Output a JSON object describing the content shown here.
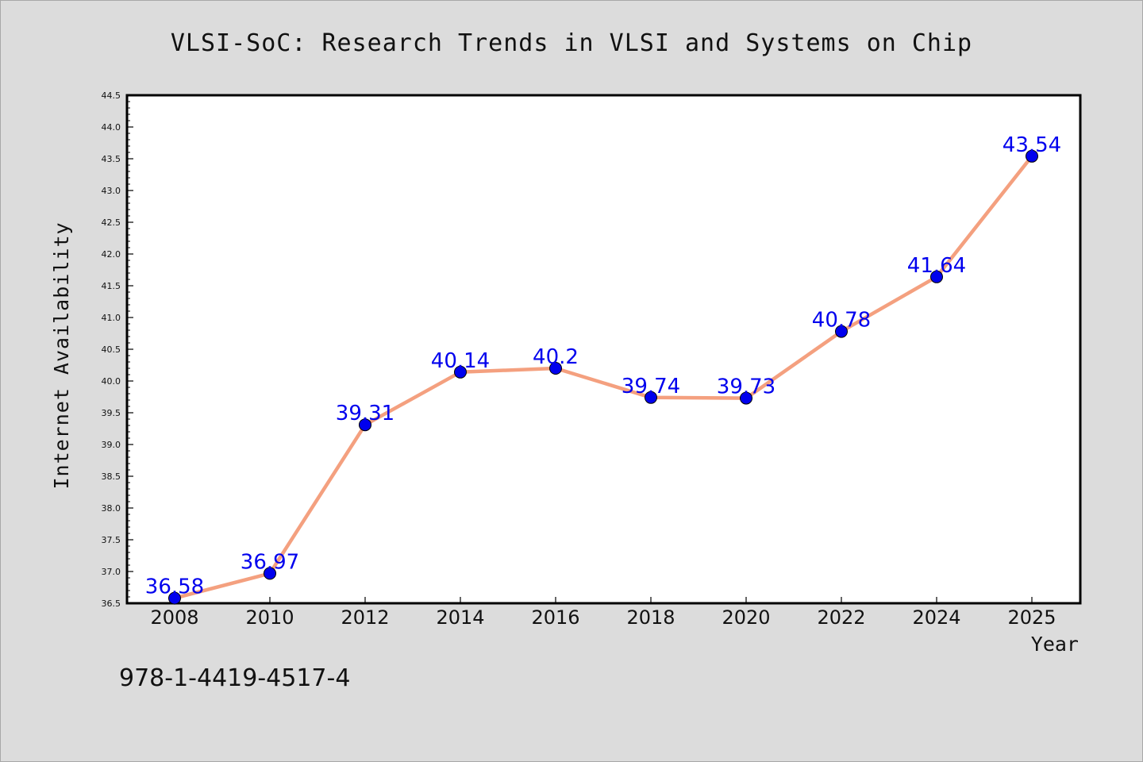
{
  "chart_data": {
    "type": "line",
    "title": "VLSI-SoC: Research Trends in VLSI and Systems on Chip",
    "xlabel": "Year",
    "ylabel": "Internet Availability",
    "categories": [
      "2008",
      "2010",
      "2012",
      "2014",
      "2016",
      "2018",
      "2020",
      "2022",
      "2024",
      "2025"
    ],
    "values": [
      36.58,
      36.97,
      39.31,
      40.14,
      40.2,
      39.74,
      39.73,
      40.78,
      41.64,
      43.54
    ],
    "data_labels": [
      "36.58",
      "36.97",
      "39.31",
      "40.14",
      "40.2",
      "39.74",
      "39.73",
      "40.78",
      "41.64",
      "43.54"
    ],
    "ylim": [
      36.5,
      44.5
    ],
    "yticks": [
      "36.5",
      "37.0",
      "37.5",
      "38.0",
      "38.5",
      "39.0",
      "39.5",
      "40.0",
      "40.5",
      "41.0",
      "41.5",
      "42.0",
      "42.5",
      "43.0",
      "43.5",
      "44.0",
      "44.5"
    ],
    "grid": false,
    "legend": "none",
    "line_color": "#f4a07f",
    "marker_color": "#0000ee",
    "label_color": "#0000ee"
  },
  "footer_text": "978-1-4419-4517-4"
}
